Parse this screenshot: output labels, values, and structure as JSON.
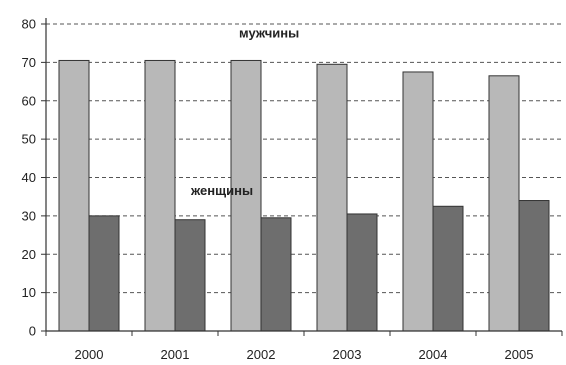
{
  "chart_data": {
    "type": "bar",
    "categories": [
      "2000",
      "2001",
      "2002",
      "2003",
      "2004",
      "2005"
    ],
    "series": [
      {
        "name": "мужчины",
        "values": [
          70.5,
          70.5,
          70.5,
          69.5,
          67.5,
          66.5
        ],
        "color": "#b8b8b8"
      },
      {
        "name": "женщины",
        "values": [
          30.0,
          29.0,
          29.5,
          30.5,
          32.5,
          34.0
        ],
        "color": "#6e6e6e"
      }
    ],
    "yticks": [
      0,
      10,
      20,
      30,
      40,
      50,
      60,
      70,
      80
    ],
    "ylim": [
      0,
      80
    ],
    "grid": true,
    "legend": "inline labels",
    "title": "",
    "xlabel": "",
    "ylabel": ""
  }
}
